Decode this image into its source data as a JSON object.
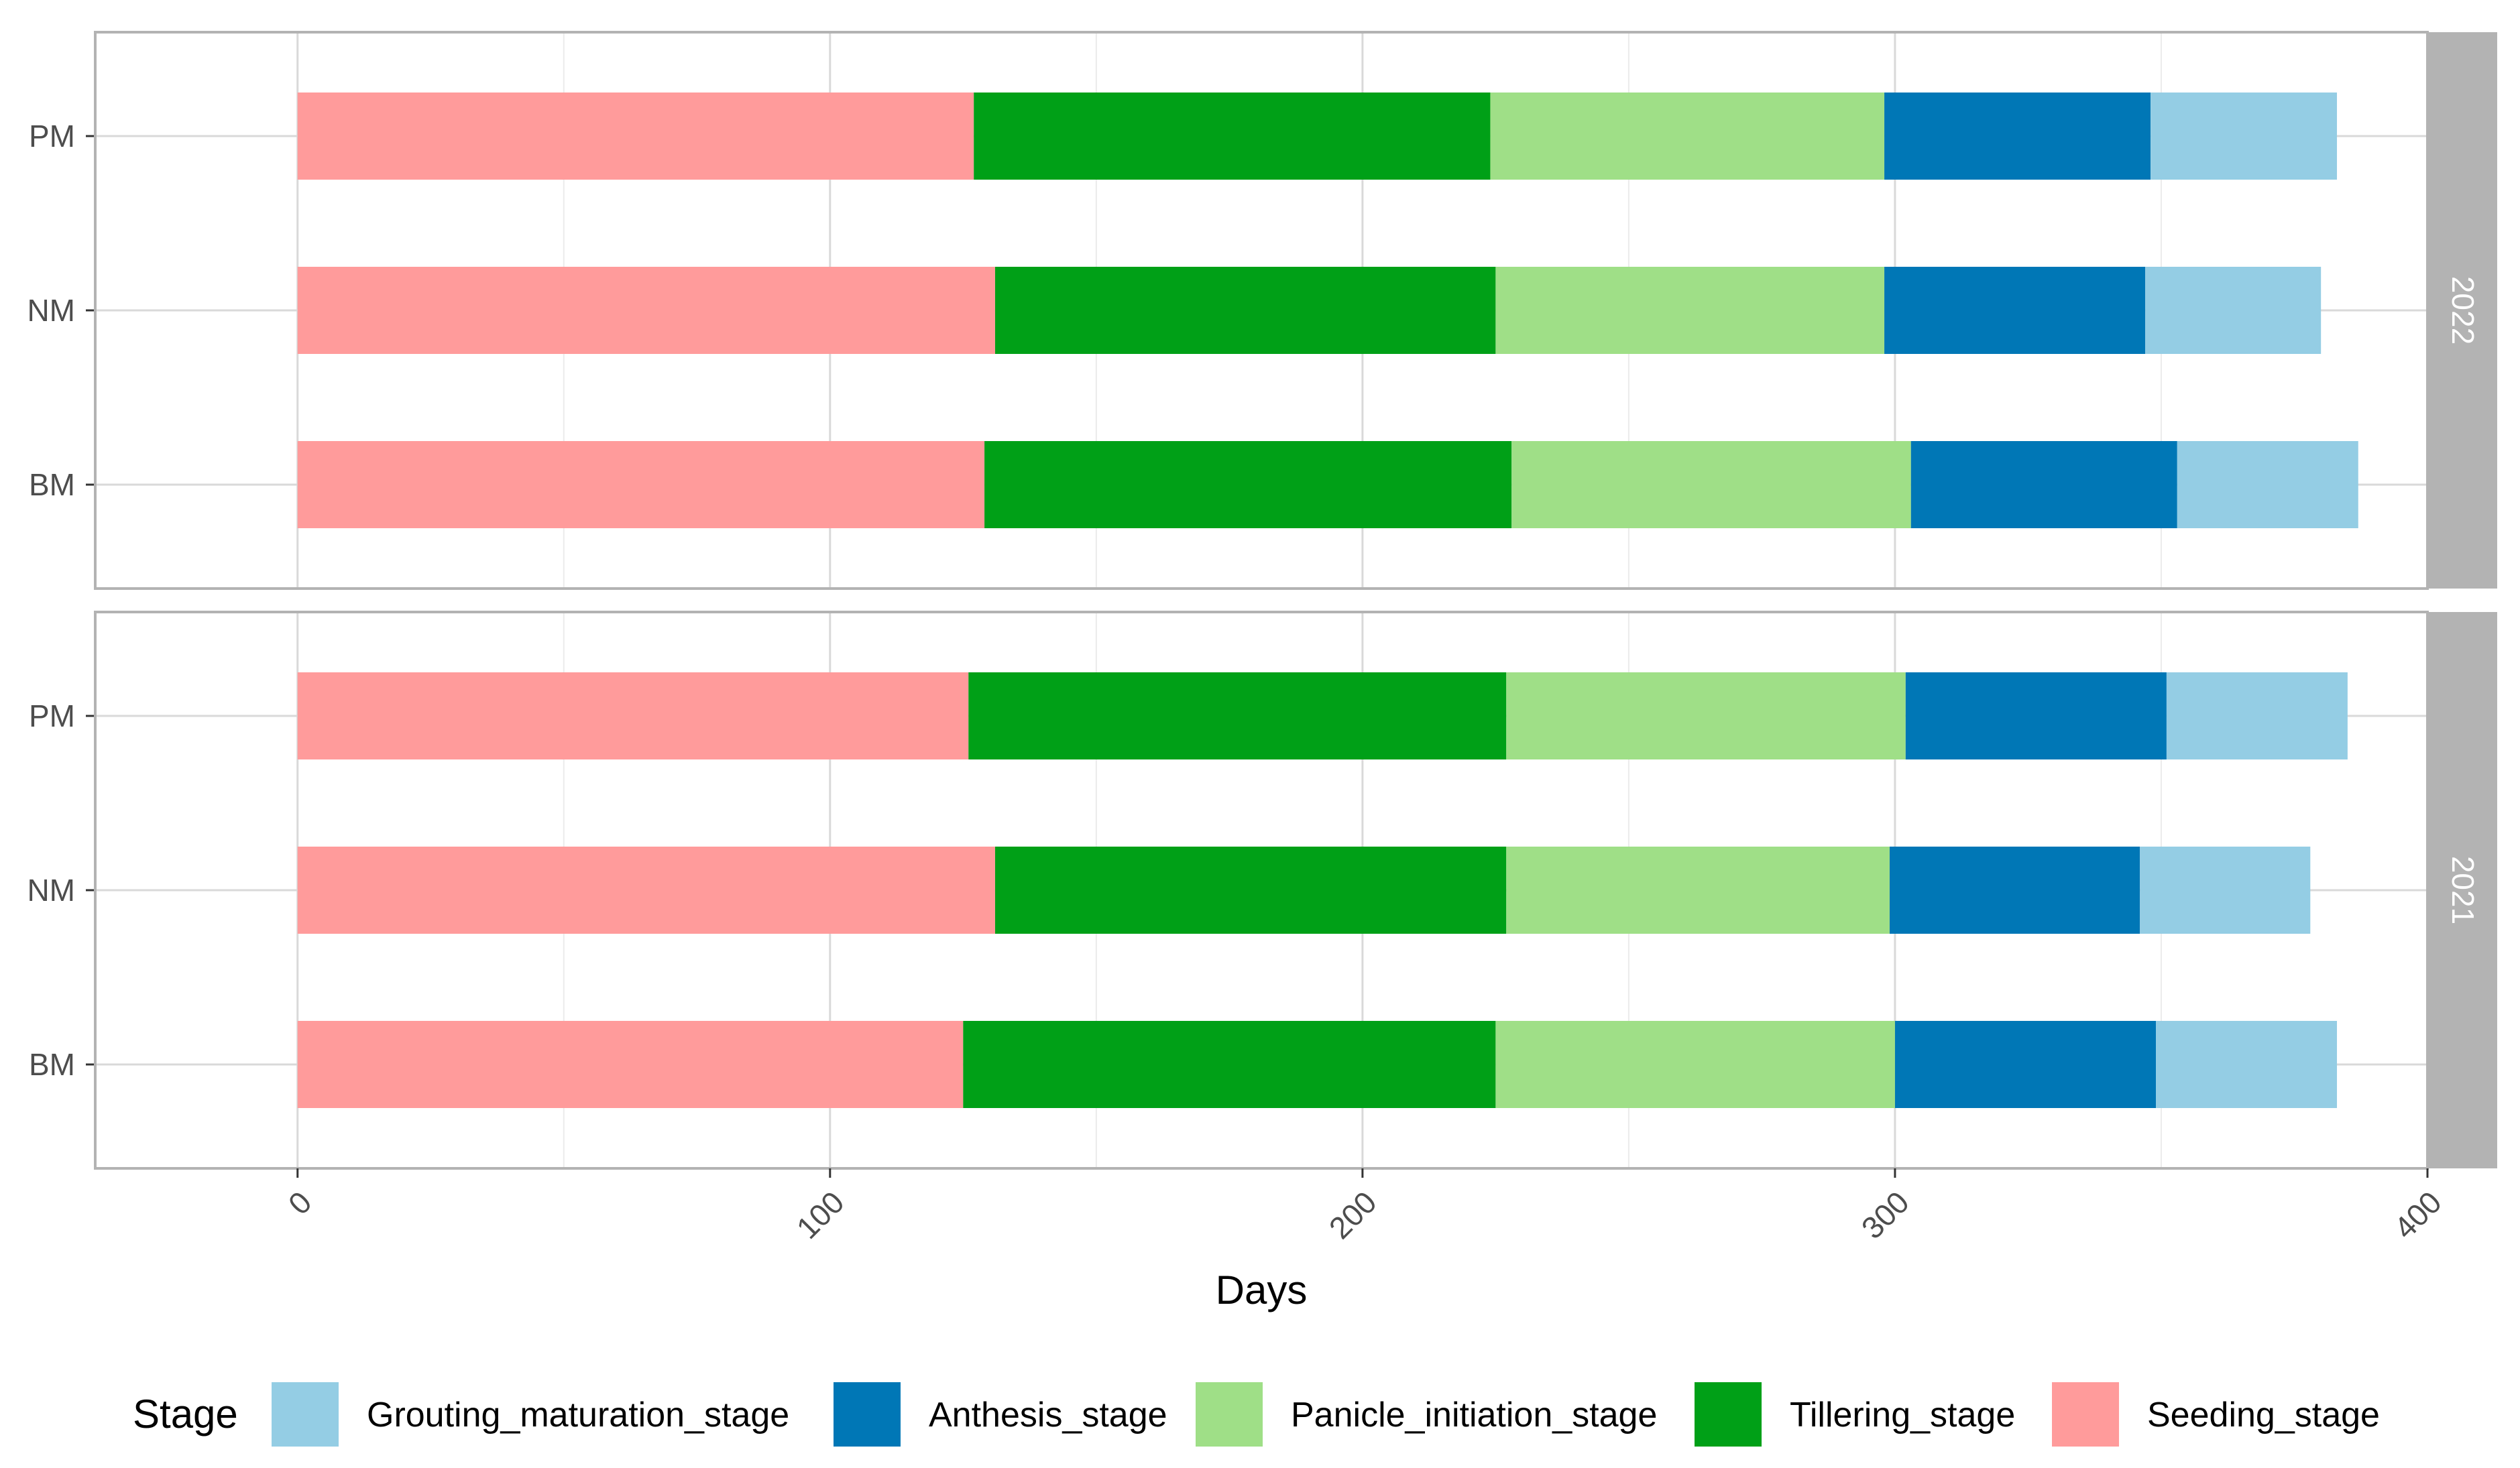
{
  "chart_data": {
    "type": "bar",
    "orientation": "horizontal",
    "stacked": true,
    "xlabel": "Days",
    "ylabel": "",
    "xlim": [
      -38,
      400
    ],
    "x_ticks": [
      0,
      100,
      200,
      300,
      400
    ],
    "grid": true,
    "legend": {
      "title": "Stage",
      "position": "bottom"
    },
    "stages": [
      {
        "name": "Grouting_maturation_stage",
        "color": "#94cde4"
      },
      {
        "name": "Anthesis_stage",
        "color": "#0077b6"
      },
      {
        "name": "Panicle_initiation_stage",
        "color": "#9fdf87"
      },
      {
        "name": "Tillering_stage",
        "color": "#00a017"
      },
      {
        "name": "Seeding_stage",
        "color": "#ff9b9b"
      }
    ],
    "stack_order": [
      "Seeding_stage",
      "Tillering_stage",
      "Panicle_initiation_stage",
      "Anthesis_stage",
      "Grouting_maturation_stage"
    ],
    "panels": [
      {
        "strip": "2022",
        "categories": [
          "PM",
          "NM",
          "BM"
        ],
        "durations": {
          "PM": {
            "Seeding_stage": 127,
            "Tillering_stage": 97,
            "Panicle_initiation_stage": 74,
            "Anthesis_stage": 50,
            "Grouting_maturation_stage": 35
          },
          "NM": {
            "Seeding_stage": 131,
            "Tillering_stage": 94,
            "Panicle_initiation_stage": 73,
            "Anthesis_stage": 49,
            "Grouting_maturation_stage": 33
          },
          "BM": {
            "Seeding_stage": 129,
            "Tillering_stage": 99,
            "Panicle_initiation_stage": 75,
            "Anthesis_stage": 50,
            "Grouting_maturation_stage": 34
          }
        }
      },
      {
        "strip": "2021",
        "categories": [
          "PM",
          "NM",
          "BM"
        ],
        "durations": {
          "PM": {
            "Seeding_stage": 126,
            "Tillering_stage": 101,
            "Panicle_initiation_stage": 75,
            "Anthesis_stage": 49,
            "Grouting_maturation_stage": 34
          },
          "NM": {
            "Seeding_stage": 131,
            "Tillering_stage": 96,
            "Panicle_initiation_stage": 72,
            "Anthesis_stage": 47,
            "Grouting_maturation_stage": 32
          },
          "BM": {
            "Seeding_stage": 125,
            "Tillering_stage": 100,
            "Panicle_initiation_stage": 75,
            "Anthesis_stage": 49,
            "Grouting_maturation_stage": 34
          }
        }
      }
    ]
  }
}
